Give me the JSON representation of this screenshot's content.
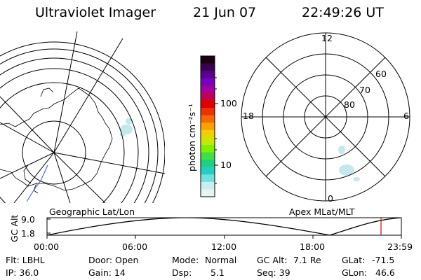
{
  "header": {
    "title": "Ultraviolet Imager",
    "date": "21 Jun 07",
    "time": "22:49:26 UT"
  },
  "colorbar": {
    "unit_label": "photon cm⁻²s⁻¹",
    "ticks": [
      "100",
      "10"
    ],
    "colors": [
      "#1a0010",
      "#3a0050",
      "#5a0090",
      "#7a00c0",
      "#a000a0",
      "#c00050",
      "#e00000",
      "#f03000",
      "#f86800",
      "#ffa000",
      "#f0d000",
      "#c8e800",
      "#80f000",
      "#40e040",
      "#20d080",
      "#20d0c0",
      "#70e0e0",
      "#c8eef0",
      "#e8f4f4"
    ]
  },
  "polar": {
    "mlt_labels": {
      "top": "12",
      "left": "18",
      "right": "6",
      "bottom": "0"
    },
    "lat_labels": [
      "60",
      "70",
      "80"
    ]
  },
  "timeline": {
    "left_label": "Geographic Lat/Lon",
    "right_label": "Apex MLat/MLT",
    "yaxis_title": "GC Alt",
    "yticks": [
      "9.0",
      "1.8"
    ],
    "xticks": [
      "00:00",
      "06:00",
      "12:00",
      "18:00",
      "23:59"
    ],
    "marker_color": "#e00000"
  },
  "info": {
    "flt": "Flt: LBHL",
    "door": "Door: Open",
    "mode_label": "Mode:",
    "mode_value": "Normal",
    "gcalt_label": "GC Alt:",
    "gcalt_value": "7.1 Re",
    "glat_label": "GLat:",
    "glat_value": "-71.5",
    "ip": "IP: 36.0",
    "gain": "Gain: 14",
    "dsp_label": "Dsp:",
    "dsp_value": "5.1",
    "seq": "Seq: 39",
    "glon_label": "GLon:",
    "glon_value": "46.6"
  }
}
